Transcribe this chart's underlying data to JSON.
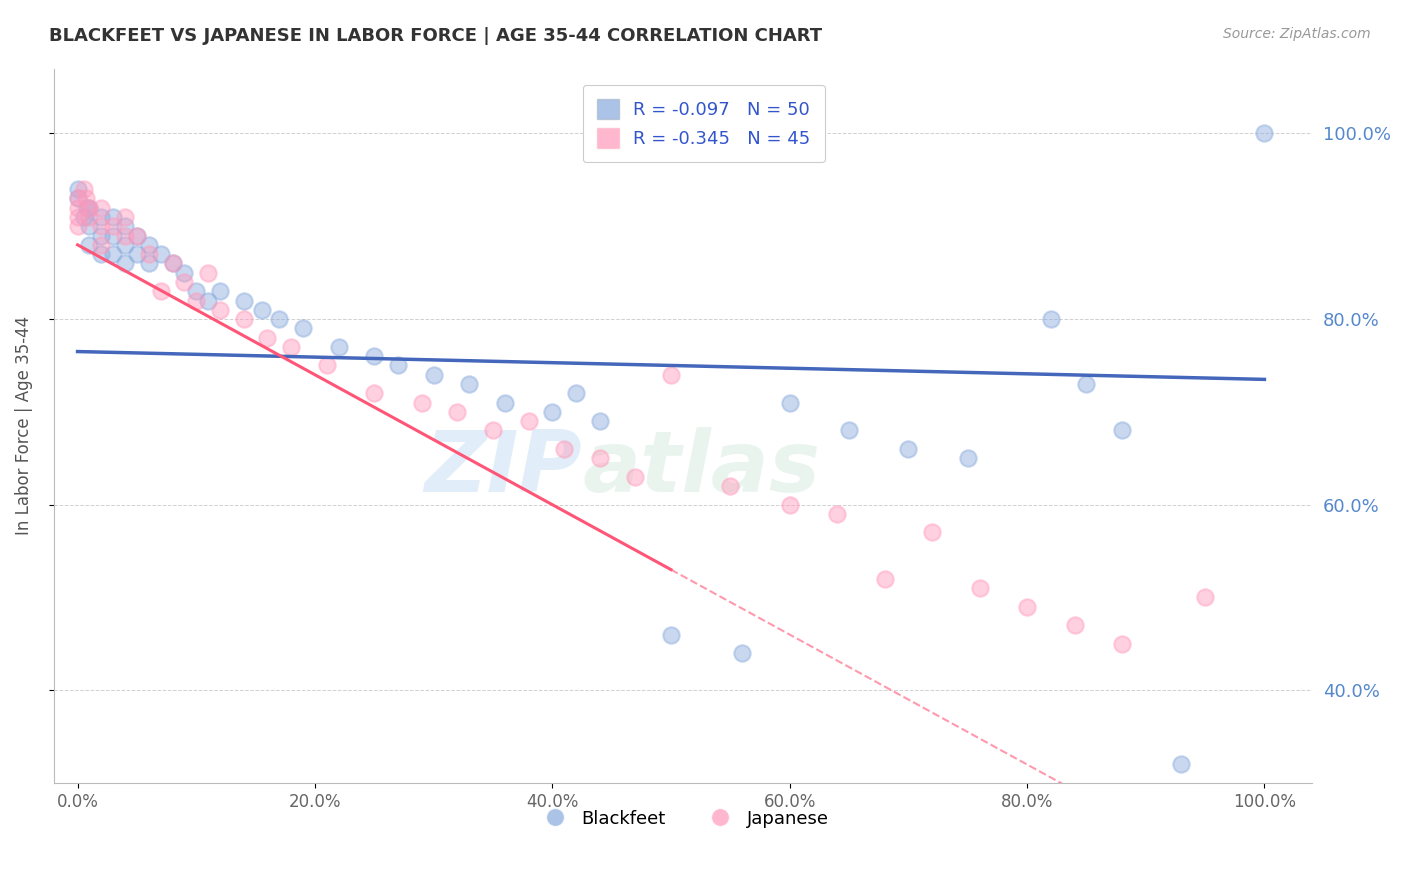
{
  "title": "BLACKFEET VS JAPANESE IN LABOR FORCE | AGE 35-44 CORRELATION CHART",
  "source_text": "Source: ZipAtlas.com",
  "ylabel": "In Labor Force | Age 35-44",
  "xlim": [
    -0.02,
    1.04
  ],
  "ylim": [
    0.3,
    1.07
  ],
  "xticks": [
    0.0,
    0.2,
    0.4,
    0.6,
    0.8,
    1.0
  ],
  "yticks": [
    0.4,
    0.6,
    0.8,
    1.0
  ],
  "xtick_labels": [
    "0.0%",
    "20.0%",
    "40.0%",
    "60.0%",
    "80.0%",
    "100.0%"
  ],
  "ytick_labels": [
    "40.0%",
    "60.0%",
    "80.0%",
    "100.0%"
  ],
  "legend_entry1": "R = -0.097   N = 50",
  "legend_entry2": "R = -0.345   N = 45",
  "blue_color": "#88AADD",
  "pink_color": "#FF99BB",
  "trend_blue": "#4466BB",
  "trend_pink": "#FF5577",
  "watermark_zip": "ZIP",
  "watermark_atlas": "atlas",
  "blue_trend_x0": 0.0,
  "blue_trend_y0": 0.765,
  "blue_trend_x1": 1.0,
  "blue_trend_y1": 0.735,
  "pink_trend_x0": 0.0,
  "pink_trend_y0": 0.88,
  "pink_trend_x1": 0.5,
  "pink_trend_y1": 0.53,
  "blackfeet_x": [
    0.0,
    0.0,
    0.005,
    0.008,
    0.01,
    0.01,
    0.01,
    0.02,
    0.02,
    0.02,
    0.03,
    0.03,
    0.03,
    0.04,
    0.04,
    0.04,
    0.05,
    0.05,
    0.06,
    0.06,
    0.07,
    0.08,
    0.09,
    0.1,
    0.11,
    0.12,
    0.14,
    0.155,
    0.17,
    0.19,
    0.22,
    0.25,
    0.27,
    0.3,
    0.33,
    0.36,
    0.4,
    0.42,
    0.44,
    0.5,
    0.56,
    0.6,
    0.65,
    0.7,
    0.75,
    0.82,
    0.85,
    0.88,
    0.93,
    1.0
  ],
  "blackfeet_y": [
    0.93,
    0.94,
    0.91,
    0.92,
    0.92,
    0.9,
    0.88,
    0.91,
    0.89,
    0.87,
    0.91,
    0.89,
    0.87,
    0.9,
    0.88,
    0.86,
    0.89,
    0.87,
    0.88,
    0.86,
    0.87,
    0.86,
    0.85,
    0.83,
    0.82,
    0.83,
    0.82,
    0.81,
    0.8,
    0.79,
    0.77,
    0.76,
    0.75,
    0.74,
    0.73,
    0.71,
    0.7,
    0.72,
    0.69,
    0.46,
    0.44,
    0.71,
    0.68,
    0.66,
    0.65,
    0.8,
    0.73,
    0.68,
    0.32,
    1.0
  ],
  "japanese_x": [
    0.0,
    0.0,
    0.0,
    0.0,
    0.005,
    0.007,
    0.01,
    0.01,
    0.02,
    0.02,
    0.02,
    0.03,
    0.04,
    0.04,
    0.05,
    0.06,
    0.07,
    0.08,
    0.09,
    0.1,
    0.11,
    0.12,
    0.14,
    0.16,
    0.18,
    0.21,
    0.25,
    0.29,
    0.32,
    0.35,
    0.38,
    0.41,
    0.44,
    0.47,
    0.5,
    0.55,
    0.6,
    0.64,
    0.68,
    0.72,
    0.76,
    0.8,
    0.84,
    0.88,
    0.95
  ],
  "japanese_y": [
    0.93,
    0.92,
    0.91,
    0.9,
    0.94,
    0.93,
    0.92,
    0.91,
    0.92,
    0.9,
    0.88,
    0.9,
    0.91,
    0.89,
    0.89,
    0.87,
    0.83,
    0.86,
    0.84,
    0.82,
    0.85,
    0.81,
    0.8,
    0.78,
    0.77,
    0.75,
    0.72,
    0.71,
    0.7,
    0.68,
    0.69,
    0.66,
    0.65,
    0.63,
    0.74,
    0.62,
    0.6,
    0.59,
    0.52,
    0.57,
    0.51,
    0.49,
    0.47,
    0.45,
    0.5
  ]
}
